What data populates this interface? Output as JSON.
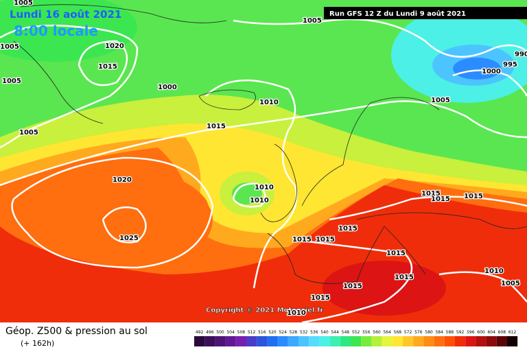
{
  "header": {
    "date": "Lundi 16 août 2021",
    "time": "8:00 locale",
    "run": "Run GFS 12 Z du Lundi 9 août 2021"
  },
  "isobar_labels": [
    "1005",
    "1020",
    "1015",
    "1005",
    "1005",
    "1000",
    "1005",
    "1010",
    "1015",
    "1020",
    "1025",
    "1010",
    "1010",
    "1005",
    "990",
    "995",
    "1000",
    "1005",
    "1015",
    "1015",
    "1015",
    "1015",
    "1015",
    "1015",
    "1015",
    "1015",
    "1015",
    "1015",
    "1010",
    "1005",
    "1010"
  ],
  "copyright": "Copyright © 2021 Meteociel.fr",
  "footer": {
    "title": "Géop. Z500 & pression au sol",
    "lead": "(+ 162h)"
  },
  "scale": [
    {
      "label": "492",
      "color": "#2a0a3a"
    },
    {
      "label": "496",
      "color": "#3c0f56"
    },
    {
      "label": "500",
      "color": "#4e1474"
    },
    {
      "label": "504",
      "color": "#611a92"
    },
    {
      "label": "508",
      "color": "#7620b0"
    },
    {
      "label": "512",
      "color": "#4b3cc8"
    },
    {
      "label": "516",
      "color": "#2a55dc"
    },
    {
      "label": "520",
      "color": "#1f6ff0"
    },
    {
      "label": "524",
      "color": "#2a8cff"
    },
    {
      "label": "528",
      "color": "#3ca8ff"
    },
    {
      "label": "532",
      "color": "#4cc4ff"
    },
    {
      "label": "536",
      "color": "#55dcff"
    },
    {
      "label": "540",
      "color": "#4cf0e6"
    },
    {
      "label": "544",
      "color": "#3cf0b4"
    },
    {
      "label": "548",
      "color": "#2ee882"
    },
    {
      "label": "552",
      "color": "#3ce650"
    },
    {
      "label": "556",
      "color": "#78ec3c"
    },
    {
      "label": "560",
      "color": "#b4f03c"
    },
    {
      "label": "564",
      "color": "#e6f53c"
    },
    {
      "label": "568",
      "color": "#ffe632"
    },
    {
      "label": "572",
      "color": "#ffc828"
    },
    {
      "label": "576",
      "color": "#ffaa1e"
    },
    {
      "label": "580",
      "color": "#ff8c14"
    },
    {
      "label": "584",
      "color": "#ff6e0f"
    },
    {
      "label": "588",
      "color": "#ff500a"
    },
    {
      "label": "592",
      "color": "#f02d0a"
    },
    {
      "label": "596",
      "color": "#dc1414"
    },
    {
      "label": "600",
      "color": "#b40f0f"
    },
    {
      "label": "604",
      "color": "#8c0a0a"
    },
    {
      "label": "608",
      "color": "#5a0505"
    },
    {
      "label": "612",
      "color": "#140000"
    }
  ]
}
